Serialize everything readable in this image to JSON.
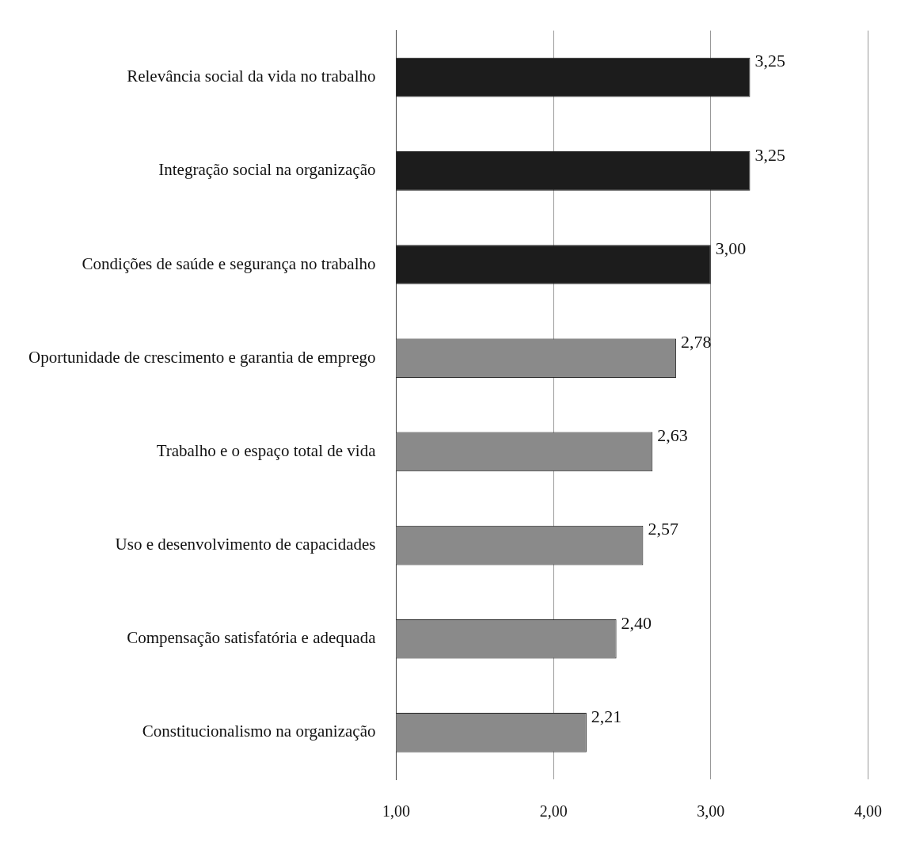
{
  "chart_data": {
    "type": "bar",
    "orientation": "horizontal",
    "categories": [
      "Relevância social da vida no trabalho",
      "Integração social na organização",
      "Condições de saúde e segurança no trabalho",
      "Oportunidade de crescimento e garantia de emprego",
      "Trabalho e o espaço total de vida",
      "Uso e desenvolvimento de capacidades",
      "Compensação satisfatória e adequada",
      "Constitucionalismo na organização"
    ],
    "values": [
      3.25,
      3.25,
      3.0,
      2.78,
      2.63,
      2.57,
      2.4,
      2.21
    ],
    "colors": [
      "#1c1c1c",
      "#1c1c1c",
      "#1c1c1c",
      "#8a8a8a",
      "#8a8a8a",
      "#8a8a8a",
      "#8a8a8a",
      "#8a8a8a"
    ],
    "value_labels": [
      "3,25",
      "3,25",
      "3,00",
      "2,78",
      "2,63",
      "2,57",
      "2,40",
      "2,21"
    ],
    "xlim": [
      1,
      4
    ],
    "xticks": [
      {
        "value": 1,
        "label": "1,00"
      },
      {
        "value": 2,
        "label": "2,00"
      },
      {
        "value": 3,
        "label": "3,00"
      },
      {
        "value": 4,
        "label": "4,00"
      }
    ],
    "grid": "x",
    "legend": false
  }
}
